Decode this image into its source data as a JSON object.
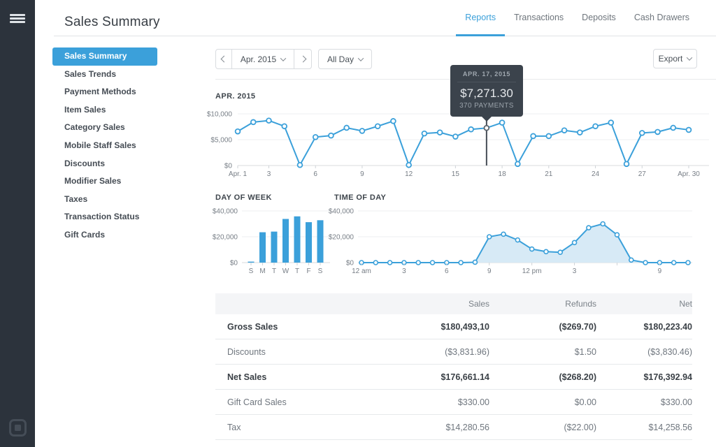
{
  "colors": {
    "accent": "#3BA0DA",
    "rail_bg": "#2C333C",
    "tooltip_bg": "#3B434C",
    "table_header_bg": "#F4F5F7",
    "chart_area_fill": "#D7EAF6"
  },
  "icons": {
    "menu": "hamburger-icon",
    "logo": "square-logo",
    "prev": "chevron-left-icon",
    "next": "chevron-right-icon",
    "dropdown": "chevron-down-icon"
  },
  "header": {
    "title": "Sales Summary",
    "tabs": [
      {
        "label": "Reports",
        "active": true
      },
      {
        "label": "Transactions",
        "active": false
      },
      {
        "label": "Deposits",
        "active": false
      },
      {
        "label": "Cash Drawers",
        "active": false
      }
    ]
  },
  "sidebar": {
    "items": [
      {
        "label": "Sales Summary",
        "active": true
      },
      {
        "label": "Sales Trends",
        "active": false
      },
      {
        "label": "Payment Methods",
        "active": false
      },
      {
        "label": "Item Sales",
        "active": false
      },
      {
        "label": "Category Sales",
        "active": false
      },
      {
        "label": "Mobile Staff Sales",
        "active": false
      },
      {
        "label": "Discounts",
        "active": false
      },
      {
        "label": "Modifier Sales",
        "active": false
      },
      {
        "label": "Taxes",
        "active": false
      },
      {
        "label": "Transaction Status",
        "active": false
      },
      {
        "label": "Gift Cards",
        "active": false
      }
    ]
  },
  "toolbar": {
    "date_label": "Apr. 2015",
    "day_filter_label": "All Day",
    "export_label": "Export"
  },
  "chart_data": [
    {
      "type": "line",
      "title": "APR. 2015",
      "x_days": [
        1,
        2,
        3,
        4,
        5,
        6,
        7,
        8,
        9,
        10,
        11,
        12,
        13,
        14,
        15,
        16,
        17,
        18,
        19,
        20,
        21,
        22,
        23,
        24,
        25,
        26,
        27,
        28,
        29,
        30
      ],
      "values": [
        6600,
        8400,
        8700,
        7600,
        100,
        5500,
        5800,
        7300,
        6700,
        7600,
        8600,
        100,
        6200,
        6400,
        5600,
        7000,
        7271.3,
        8300,
        300,
        5700,
        5700,
        6800,
        6400,
        7600,
        8300,
        300,
        6300,
        6500,
        7300,
        6900
      ],
      "ylim": [
        0,
        10000
      ],
      "yticks": [
        {
          "value": 0,
          "label": "$0"
        },
        {
          "value": 5000,
          "label": "$5,000"
        },
        {
          "value": 10000,
          "label": "$10,000"
        }
      ],
      "xticks": [
        {
          "day": 1,
          "label": "Apr. 1"
        },
        {
          "day": 3,
          "label": "3"
        },
        {
          "day": 6,
          "label": "6"
        },
        {
          "day": 9,
          "label": "9"
        },
        {
          "day": 12,
          "label": "12"
        },
        {
          "day": 15,
          "label": "15"
        },
        {
          "day": 18,
          "label": "18"
        },
        {
          "day": 21,
          "label": "21"
        },
        {
          "day": 24,
          "label": "24"
        },
        {
          "day": 27,
          "label": "27"
        },
        {
          "day": 30,
          "label": "Apr. 30"
        }
      ],
      "grid": true,
      "highlight": {
        "day": 17,
        "date": "APR. 17, 2015",
        "amount": "$7,271.30",
        "payments": "370 PAYMENTS"
      }
    },
    {
      "type": "bar",
      "title": "DAY OF WEEK",
      "categories": [
        "S",
        "M",
        "T",
        "W",
        "T",
        "F",
        "S"
      ],
      "values": [
        500,
        23500,
        24000,
        33800,
        35800,
        31300,
        32800
      ],
      "ylim": [
        0,
        40000
      ],
      "yticks": [
        {
          "value": 0,
          "label": "$0"
        },
        {
          "value": 20000,
          "label": "$20,000"
        },
        {
          "value": 40000,
          "label": "$40,000"
        }
      ],
      "grid": true
    },
    {
      "type": "area",
      "title": "TIME OF DAY",
      "x_hours": [
        0,
        1,
        2,
        3,
        4,
        5,
        6,
        7,
        8,
        9,
        10,
        11,
        12,
        13,
        14,
        15,
        16,
        17,
        18,
        19,
        20,
        21,
        22,
        23
      ],
      "values": [
        0,
        0,
        0,
        0,
        0,
        0,
        0,
        0,
        300,
        20000,
        22000,
        17500,
        10500,
        8500,
        8000,
        15500,
        27000,
        30000,
        21500,
        2000,
        0,
        0,
        0,
        0
      ],
      "ylim": [
        0,
        40000
      ],
      "yticks": [
        {
          "value": 0,
          "label": "$0"
        },
        {
          "value": 20000,
          "label": "$20,000"
        },
        {
          "value": 40000,
          "label": "$40,000"
        }
      ],
      "xticks": [
        {
          "hour": 0,
          "label": "12 am"
        },
        {
          "hour": 3,
          "label": "3"
        },
        {
          "hour": 6,
          "label": "6"
        },
        {
          "hour": 9,
          "label": "9"
        },
        {
          "hour": 12,
          "label": "12 pm"
        },
        {
          "hour": 15,
          "label": "3"
        },
        {
          "hour": 18,
          "label": ""
        },
        {
          "hour": 21,
          "label": "9"
        }
      ],
      "grid": true
    }
  ],
  "table": {
    "headers": [
      "Sales",
      "Refunds",
      "Net"
    ],
    "rows": [
      {
        "label": "Gross Sales",
        "sales": "$180,493,10",
        "refunds": "($269.70)",
        "net": "$180,223.40",
        "bold": true
      },
      {
        "label": "Discounts",
        "sales": "($3,831.96)",
        "refunds": "$1.50",
        "net": "($3,830.46)",
        "bold": false
      },
      {
        "label": "Net Sales",
        "sales": "$176,661.14",
        "refunds": "($268.20)",
        "net": "$176,392.94",
        "bold": true
      },
      {
        "label": "Gift Card Sales",
        "sales": "$330.00",
        "refunds": "$0.00",
        "net": "$330.00",
        "bold": false
      },
      {
        "label": "Tax",
        "sales": "$14,280.56",
        "refunds": "($22.00)",
        "net": "$14,258.56",
        "bold": false
      }
    ]
  }
}
